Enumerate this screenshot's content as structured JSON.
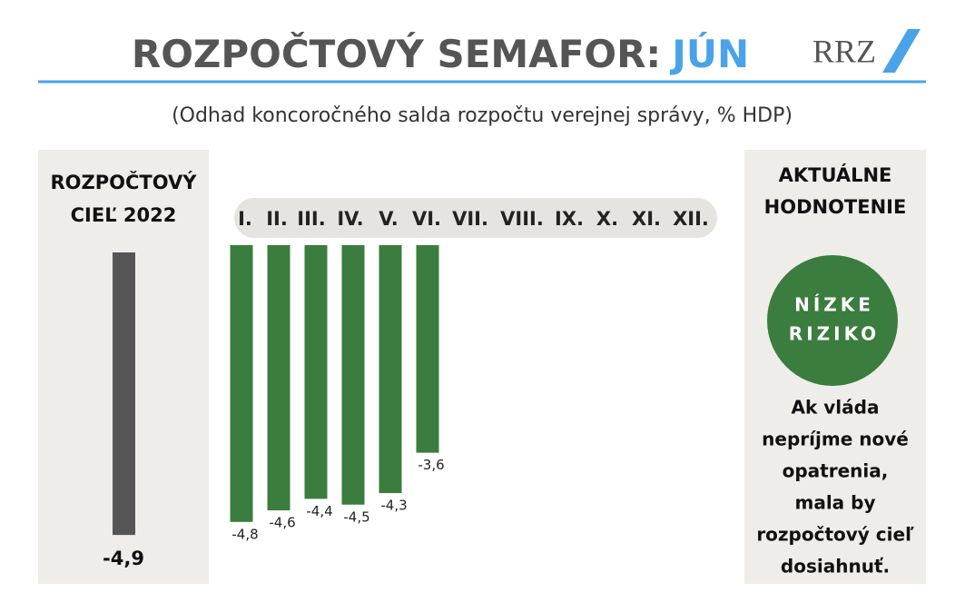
{
  "header": {
    "title": "ROZPOČTOVÝ SEMAFOR:",
    "month": "JÚN",
    "logo": "RRZ"
  },
  "subtitle": "(Odhad koncoročného salda rozpočtu verejnej správy,  % HDP)",
  "target": {
    "title_lines": [
      "ROZPOČTOVÝ",
      "CIEĽ 2022"
    ],
    "value": -4.9,
    "value_label": "-4,9",
    "color": "#555555"
  },
  "chart_data": {
    "type": "bar",
    "categories": [
      "I.",
      "II.",
      "III.",
      "IV.",
      "V.",
      "VI.",
      "VII.",
      "VIII.",
      "IX.",
      "X.",
      "XI.",
      "XII."
    ],
    "values": [
      -4.8,
      -4.6,
      -4.4,
      -4.5,
      -4.3,
      -3.6,
      null,
      null,
      null,
      null,
      null,
      null
    ],
    "value_labels": [
      "-4,8",
      "-4,6",
      "-4,4",
      "-4,5",
      "-4,3",
      "-3,6",
      null,
      null,
      null,
      null,
      null,
      null
    ],
    "color": "#3a7d3e"
  },
  "assessment": {
    "title_lines": [
      "AKTUÁLNE",
      "HODNOTENIE"
    ],
    "badge_lines": [
      "NÍZKE",
      "RIZIKO"
    ],
    "badge_color": "#3a7d3e",
    "text_lines": [
      "Ak vláda",
      "nepríjme nové",
      "opatrenia,",
      "mala by",
      "rozpočtový cieľ",
      "dosiahnuť."
    ]
  }
}
